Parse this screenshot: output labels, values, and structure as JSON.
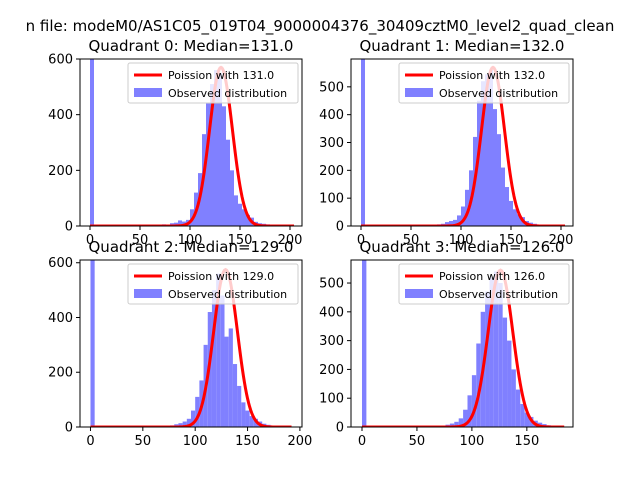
{
  "suptitle": "n file: modeM0/AS1C05_019T04_9000004376_30409cztM0_level2_quad_clean",
  "colors": {
    "hist": "#8080ff",
    "fit": "#ff0000",
    "axes": "#000000"
  },
  "chart_data": [
    {
      "type": "bar",
      "title": "Quadrant 0: Median=131.0",
      "xlim": [
        -10,
        212
      ],
      "ylim": [
        0,
        600
      ],
      "xticks": [
        0,
        50,
        100,
        150,
        200
      ],
      "yticks": [
        0,
        200,
        400,
        600
      ],
      "legend": {
        "fit_label": "Poission with 131.0",
        "hist_label": "Observed distribution",
        "position": "upper-right"
      },
      "fit": {
        "lambda": 131.0,
        "peak": 570
      },
      "bins": {
        "edges": [
          0,
          4,
          60,
          64,
          68,
          72,
          76,
          80,
          84,
          88,
          92,
          96,
          100,
          104,
          108,
          112,
          116,
          120,
          124,
          128,
          132,
          136,
          140,
          144,
          148,
          152,
          156,
          160,
          164,
          168,
          172,
          176,
          180,
          184,
          188,
          192,
          196,
          200,
          204
        ],
        "counts": [
          600,
          0,
          2,
          1,
          2,
          6,
          3,
          10,
          12,
          20,
          16,
          22,
          60,
          120,
          190,
          330,
          440,
          510,
          560,
          550,
          430,
          310,
          200,
          110,
          80,
          60,
          40,
          30,
          15,
          10,
          8,
          6,
          4,
          3,
          2,
          1,
          0,
          0
        ]
      }
    },
    {
      "type": "bar",
      "title": "Quadrant 1: Median=132.0",
      "xlim": [
        -10,
        212
      ],
      "ylim": [
        0,
        600
      ],
      "xticks": [
        0,
        50,
        100,
        150,
        200
      ],
      "yticks": [
        0,
        100,
        200,
        300,
        400,
        500
      ],
      "legend": {
        "fit_label": "Poission with 132.0",
        "hist_label": "Observed distribution",
        "position": "upper-right"
      },
      "fit": {
        "lambda": 132.0,
        "peak": 570
      },
      "bins": {
        "edges": [
          0,
          4,
          60,
          64,
          68,
          72,
          76,
          80,
          84,
          88,
          92,
          96,
          100,
          104,
          108,
          112,
          116,
          120,
          124,
          128,
          132,
          136,
          140,
          144,
          148,
          152,
          156,
          160,
          164,
          168,
          172,
          176,
          180,
          184,
          188,
          192,
          196,
          200,
          204
        ],
        "counts": [
          600,
          0,
          1,
          2,
          3,
          5,
          6,
          8,
          14,
          18,
          22,
          38,
          70,
          130,
          200,
          320,
          450,
          520,
          545,
          560,
          420,
          330,
          210,
          140,
          90,
          60,
          42,
          32,
          18,
          12,
          8,
          5,
          3,
          2,
          1,
          0,
          0,
          0
        ]
      }
    },
    {
      "type": "bar",
      "title": "Quadrant 2: Median=129.0",
      "xlim": [
        -10,
        202
      ],
      "ylim": [
        0,
        610
      ],
      "xticks": [
        0,
        50,
        100,
        150,
        200
      ],
      "yticks": [
        0,
        200,
        400,
        600
      ],
      "legend": {
        "fit_label": "Poission with 129.0",
        "hist_label": "Observed distribution",
        "position": "upper-right"
      },
      "fit": {
        "lambda": 129.0,
        "peak": 575
      },
      "bins": {
        "edges": [
          0,
          4,
          64,
          68,
          72,
          76,
          80,
          84,
          88,
          92,
          96,
          100,
          104,
          108,
          112,
          116,
          120,
          124,
          128,
          132,
          136,
          140,
          144,
          148,
          152,
          156,
          160,
          164,
          168,
          172,
          176,
          180,
          184,
          188,
          192
        ],
        "counts": [
          610,
          0,
          1,
          2,
          4,
          6,
          10,
          14,
          20,
          30,
          60,
          110,
          170,
          300,
          420,
          500,
          560,
          480,
          330,
          360,
          230,
          150,
          90,
          60,
          40,
          30,
          20,
          12,
          8,
          5,
          3,
          2,
          1,
          0
        ]
      }
    },
    {
      "type": "bar",
      "title": "Quadrant 3: Median=126.0",
      "xlim": [
        -10,
        192
      ],
      "ylim": [
        0,
        580
      ],
      "xticks": [
        0,
        50,
        100,
        150
      ],
      "yticks": [
        0,
        100,
        200,
        300,
        400,
        500
      ],
      "legend": {
        "fit_label": "Poission with 126.0",
        "hist_label": "Observed distribution",
        "position": "upper-right"
      },
      "fit": {
        "lambda": 126.0,
        "peak": 545
      },
      "bins": {
        "edges": [
          0,
          4,
          60,
          64,
          68,
          72,
          76,
          80,
          84,
          88,
          92,
          96,
          100,
          104,
          108,
          112,
          116,
          120,
          124,
          128,
          132,
          136,
          140,
          144,
          148,
          152,
          156,
          160,
          164,
          168,
          172,
          176,
          180,
          184
        ],
        "counts": [
          580,
          0,
          1,
          2,
          3,
          5,
          8,
          12,
          18,
          30,
          60,
          110,
          180,
          290,
          400,
          470,
          520,
          540,
          500,
          380,
          300,
          200,
          130,
          80,
          50,
          35,
          22,
          15,
          10,
          6,
          4,
          2,
          1
        ]
      }
    }
  ]
}
